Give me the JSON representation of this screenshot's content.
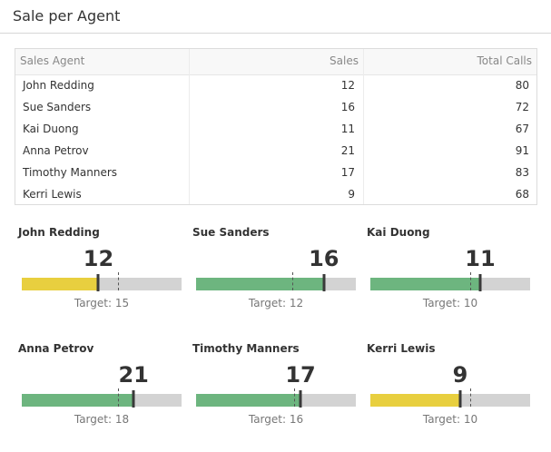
{
  "page": {
    "title": "Sale per Agent"
  },
  "table": {
    "headers": [
      "Sales Agent",
      "Sales",
      "Total Calls"
    ],
    "rows": [
      [
        "John Redding",
        "12",
        "80"
      ],
      [
        "Sue Sanders",
        "16",
        "72"
      ],
      [
        "Kai Duong",
        "11",
        "67"
      ],
      [
        "Anna Petrov",
        "21",
        "91"
      ],
      [
        "Timothy Manners",
        "17",
        "83"
      ],
      [
        "Kerri Lewis",
        "9",
        "68"
      ]
    ]
  },
  "gauges": [
    {
      "name": "John Redding",
      "value": "12",
      "target": "Target: 15",
      "value_num": 12,
      "target_num": 15,
      "max": 25,
      "color": "#e8cf3f"
    },
    {
      "name": "Sue Sanders",
      "value": "16",
      "target": "Target: 12",
      "value_num": 16,
      "target_num": 12,
      "max": 20,
      "color": "#6db57f"
    },
    {
      "name": "Kai Duong",
      "value": "11",
      "target": "Target: 10",
      "value_num": 11,
      "target_num": 10,
      "max": 16,
      "color": "#6db57f"
    },
    {
      "name": "Anna Petrov",
      "value": "21",
      "target": "Target: 18",
      "value_num": 21,
      "target_num": 18,
      "max": 30,
      "color": "#6db57f"
    },
    {
      "name": "Timothy Manners",
      "value": "17",
      "target": "Target: 16",
      "value_num": 17,
      "target_num": 16,
      "max": 26,
      "color": "#6db57f"
    },
    {
      "name": "Kerri Lewis",
      "value": "9",
      "target": "Target: 10",
      "value_num": 9,
      "target_num": 10,
      "max": 16,
      "color": "#e8cf3f"
    }
  ]
}
